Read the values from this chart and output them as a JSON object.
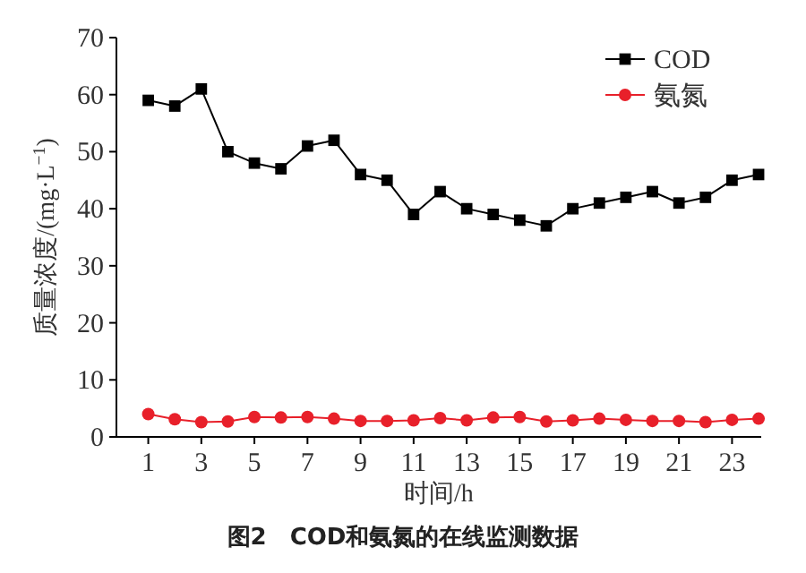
{
  "chart_data": {
    "type": "line",
    "title": "图2　COD和氨氮的在线监测数据",
    "xlabel": "时间/h",
    "ylabel": "质量浓度/(mg·L$^{−1}$)",
    "x": [
      1,
      2,
      3,
      4,
      5,
      6,
      7,
      8,
      9,
      10,
      11,
      12,
      13,
      14,
      15,
      16,
      17,
      18,
      19,
      20,
      21,
      22,
      23,
      24
    ],
    "series": [
      {
        "name": "COD",
        "color": "#000000",
        "marker": "square",
        "values": [
          59,
          58,
          61,
          50,
          48,
          47,
          51,
          52,
          46,
          45,
          39,
          43,
          40,
          39,
          38,
          37,
          40,
          41,
          42,
          43,
          41,
          42,
          45,
          46
        ]
      },
      {
        "name": "氨氮",
        "color": "#e8202a",
        "marker": "circle",
        "values": [
          4.0,
          3.1,
          2.6,
          2.7,
          3.5,
          3.4,
          3.5,
          3.2,
          2.8,
          2.8,
          2.9,
          3.3,
          2.9,
          3.4,
          3.5,
          2.7,
          2.9,
          3.2,
          3.0,
          2.8,
          2.8,
          2.6,
          3.0,
          3.2
        ]
      }
    ],
    "xlim": [
      -0.2,
      24.1
    ],
    "xticks": [
      1,
      3,
      5,
      7,
      9,
      11,
      13,
      15,
      17,
      19,
      21,
      23
    ],
    "ylim": [
      0,
      70
    ],
    "yticks": [
      0,
      10,
      20,
      30,
      40,
      50,
      60,
      70
    ],
    "grid": false,
    "legend": "top right",
    "line_style": "solid"
  }
}
